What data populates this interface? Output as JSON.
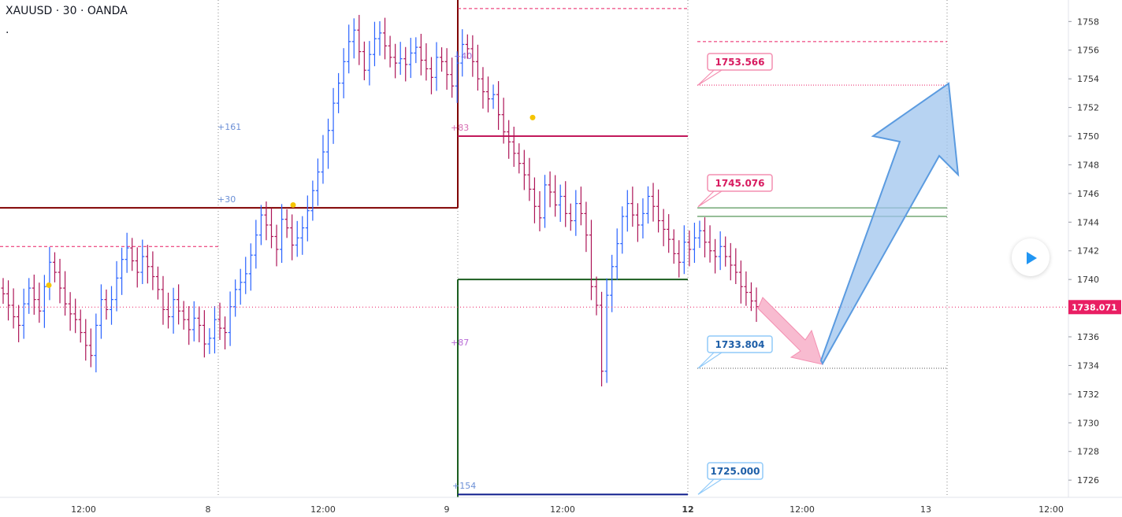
{
  "header": {
    "symbol": "XAUUSD · 30 · OANDA",
    "dot": "."
  },
  "price_tag": {
    "value": "1738.071",
    "color": "#e91e63"
  },
  "colors": {
    "up": "#2962ff",
    "down": "#ad1457",
    "pink": "#e91e63",
    "blue": "#1565c0",
    "green": "#1b5e20",
    "maroon": "#800000"
  },
  "chart_data": {
    "type": "ohlc",
    "ylim": [
      1724.8,
      1759.5
    ],
    "yticks": [
      1726,
      1728,
      1730,
      1732,
      1734,
      1736,
      1738,
      1740,
      1742,
      1744,
      1746,
      1748,
      1750,
      1752,
      1754,
      1756,
      1758
    ],
    "xtick_labels": [
      "12:00",
      "8",
      "12:00",
      "9",
      "12:00",
      "12",
      "12:00",
      "13",
      "12:00"
    ],
    "bold_xticks": [
      "12"
    ],
    "last_price": 1738.071,
    "closes": [
      1739,
      1738.2,
      1737.4,
      1736.8,
      1738.3,
      1739.4,
      1738.6,
      1737.8,
      1739.5,
      1741.2,
      1740.5,
      1739.4,
      1738.3,
      1737.6,
      1737.2,
      1736.3,
      1735.4,
      1734.7,
      1736.8,
      1738.6,
      1737.9,
      1738.6,
      1740.1,
      1741.4,
      1742.2,
      1741.3,
      1740.5,
      1741.6,
      1740.9,
      1740.2,
      1739.3,
      1737.9,
      1737.4,
      1738.6,
      1737.8,
      1737.2,
      1736.5,
      1737.3,
      1736.8,
      1735.5,
      1735.9,
      1737.2,
      1736.6,
      1736.3,
      1738.1,
      1739.3,
      1739.8,
      1740.4,
      1741.7,
      1743.1,
      1744.5,
      1743.8,
      1743,
      1742.1,
      1744.2,
      1743.6,
      1742.4,
      1742.9,
      1743.6,
      1744.8,
      1746.2,
      1747.5,
      1748.9,
      1750.4,
      1752.3,
      1753.7,
      1755.2,
      1756.6,
      1757.4,
      1755.9,
      1754.6,
      1755.7,
      1756.8,
      1757.2,
      1756.3,
      1755.5,
      1755.1,
      1755.4,
      1755,
      1755.8,
      1756.2,
      1755.3,
      1754.7,
      1754.1,
      1755.5,
      1755.2,
      1754.3,
      1753.5,
      1755.1,
      1756.4,
      1756.1,
      1755.2,
      1754,
      1753.1,
      1752.6,
      1752.9,
      1751.5,
      1750.3,
      1749.6,
      1748.8,
      1748.1,
      1747.3,
      1746.3,
      1745.1,
      1744.3,
      1746.6,
      1746.1,
      1745.2,
      1745.8,
      1744.6,
      1744.1,
      1745.3,
      1744.6,
      1743.1,
      1739.5,
      1738.2,
      1733.6,
      1738.9,
      1740.9,
      1742.5,
      1744.4,
      1745.3,
      1744.5,
      1743.8,
      1744.6,
      1745.8,
      1745.1,
      1744.1,
      1743.5,
      1742.8,
      1741.8,
      1741.2,
      1742.6,
      1742.1,
      1742.9,
      1743.4,
      1742.6,
      1742,
      1741.6,
      1742.3,
      1741.6,
      1741,
      1740.5,
      1739.5,
      1739.1,
      1738.5,
      1738.1
    ],
    "annotations": [
      {
        "text": "1753.566",
        "price": 1753.566,
        "style": "pink"
      },
      {
        "text": "1745.076",
        "price": 1745.076,
        "style": "pink"
      },
      {
        "text": "1733.804",
        "price": 1733.804,
        "style": "blue"
      },
      {
        "text": "1725.000",
        "price": 1725.0,
        "style": "blue"
      }
    ],
    "level_lines": [
      {
        "price": 1745.0,
        "color": "maroon"
      },
      {
        "price": 1750.0,
        "color": "magenta"
      },
      {
        "price": 1740.0,
        "color": "green"
      },
      {
        "price": 1725.0,
        "color": "navy"
      },
      {
        "price": 1745.0,
        "color": "green-thin"
      },
      {
        "price": 1744.4,
        "color": "green-thin"
      }
    ],
    "small_marks": [
      "+161",
      "+30",
      "+40",
      "+83",
      "+87",
      "+154"
    ]
  }
}
